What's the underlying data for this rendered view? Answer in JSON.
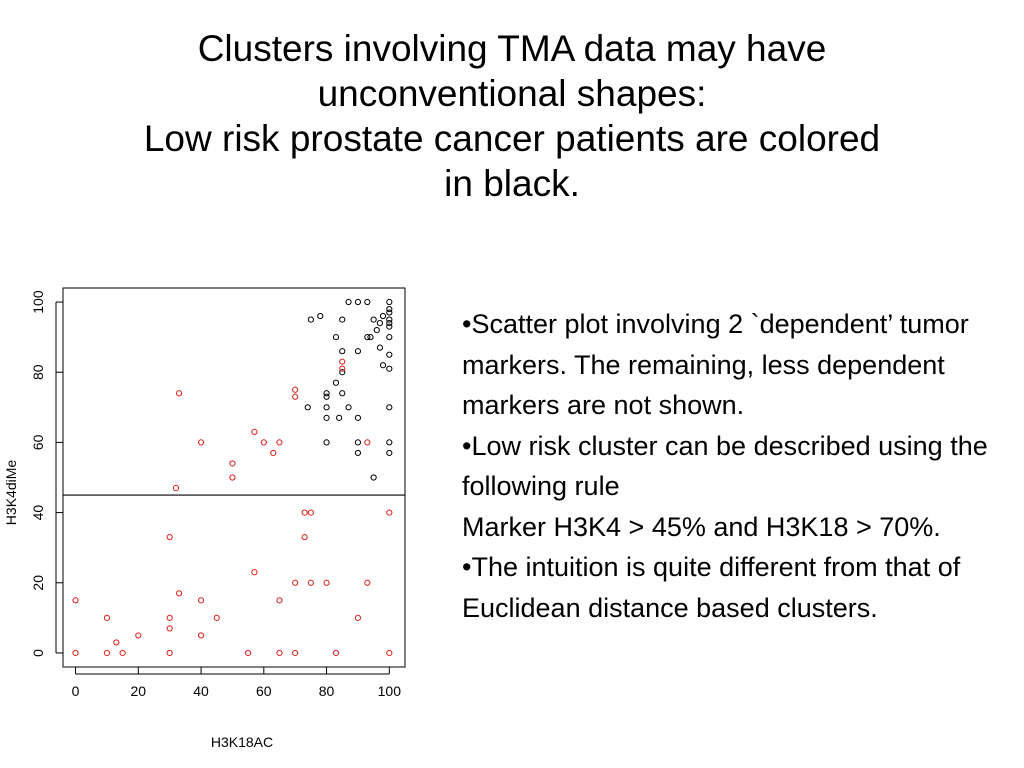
{
  "title": {
    "line1": "Clusters involving TMA data may have",
    "line2": "unconventional shapes:",
    "line3": "Low risk prostate cancer patients are colored",
    "line4": "in black."
  },
  "bullets": {
    "marker": "•",
    "b1": "Scatter plot involving 2 `dependent’ tumor markers. The remaining, less dependent markers are not shown.",
    "b2": "Low risk cluster can be described using the following rule",
    "b2_rule": "Marker H3K4 > 45% and H3K18 > 70%.",
    "b3": "The intuition is quite different from that of Euclidean distance based clusters."
  },
  "colors": {
    "low_risk": "#000000",
    "other": "#e0201b"
  },
  "chart_data": {
    "type": "scatter",
    "title": "",
    "xlabel": "H3K18AC",
    "ylabel": "H3K4diMe",
    "xlim": [
      -4,
      105
    ],
    "ylim": [
      -4,
      104
    ],
    "xticks": [
      0,
      20,
      40,
      60,
      80,
      100
    ],
    "yticks": [
      0,
      20,
      40,
      60,
      80,
      100
    ],
    "hline": 45,
    "grid": false,
    "legend": "none",
    "series": [
      {
        "color": "#000000",
        "points": [
          [
            87,
            100
          ],
          [
            90,
            100
          ],
          [
            93,
            100
          ],
          [
            100,
            100
          ],
          [
            100,
            98
          ],
          [
            100,
            97
          ],
          [
            98,
            96
          ],
          [
            100,
            95
          ],
          [
            75,
            95
          ],
          [
            78,
            96
          ],
          [
            85,
            95
          ],
          [
            95,
            95
          ],
          [
            97,
            94
          ],
          [
            100,
            94
          ],
          [
            96,
            92
          ],
          [
            100,
            93
          ],
          [
            83,
            90
          ],
          [
            93,
            90
          ],
          [
            94,
            90
          ],
          [
            100,
            90
          ],
          [
            85,
            86
          ],
          [
            90,
            86
          ],
          [
            97,
            87
          ],
          [
            100,
            85
          ],
          [
            98,
            82
          ],
          [
            100,
            81
          ],
          [
            85,
            80
          ],
          [
            83,
            77
          ],
          [
            80,
            74
          ],
          [
            80,
            73
          ],
          [
            85,
            74
          ],
          [
            74,
            70
          ],
          [
            80,
            70
          ],
          [
            87,
            70
          ],
          [
            100,
            70
          ],
          [
            80,
            67
          ],
          [
            84,
            67
          ],
          [
            90,
            67
          ],
          [
            80,
            60
          ],
          [
            90,
            60
          ],
          [
            100,
            60
          ],
          [
            90,
            57
          ],
          [
            100,
            57
          ],
          [
            95,
            50
          ]
        ]
      },
      {
        "color": "#e0201b",
        "points": [
          [
            33,
            74
          ],
          [
            70,
            75
          ],
          [
            70,
            73
          ],
          [
            85,
            83
          ],
          [
            85,
            81
          ],
          [
            57,
            63
          ],
          [
            60,
            60
          ],
          [
            65,
            60
          ],
          [
            40,
            60
          ],
          [
            63,
            57
          ],
          [
            93,
            60
          ],
          [
            50,
            54
          ],
          [
            50,
            50
          ],
          [
            32,
            47
          ],
          [
            73,
            40
          ],
          [
            75,
            40
          ],
          [
            100,
            40
          ],
          [
            30,
            33
          ],
          [
            73,
            33
          ],
          [
            57,
            23
          ],
          [
            70,
            20
          ],
          [
            75,
            20
          ],
          [
            80,
            20
          ],
          [
            93,
            20
          ],
          [
            33,
            17
          ],
          [
            0,
            15
          ],
          [
            40,
            15
          ],
          [
            65,
            15
          ],
          [
            10,
            10
          ],
          [
            30,
            10
          ],
          [
            45,
            10
          ],
          [
            90,
            10
          ],
          [
            30,
            7
          ],
          [
            20,
            5
          ],
          [
            40,
            5
          ],
          [
            13,
            3
          ],
          [
            0,
            0
          ],
          [
            10,
            0
          ],
          [
            15,
            0
          ],
          [
            30,
            0
          ],
          [
            55,
            0
          ],
          [
            65,
            0
          ],
          [
            70,
            0
          ],
          [
            83,
            0
          ],
          [
            100,
            0
          ]
        ]
      }
    ]
  }
}
